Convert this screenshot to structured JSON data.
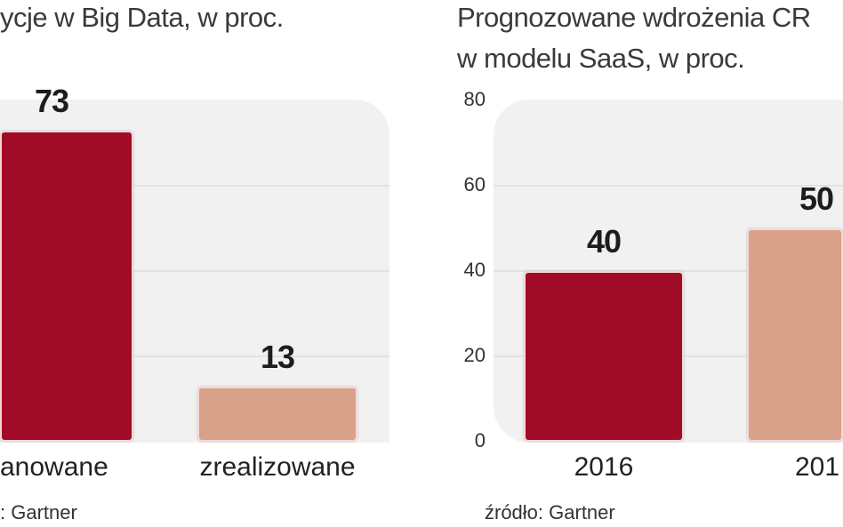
{
  "chart_data": [
    {
      "type": "bar",
      "title": "ycje w Big Data, w proc.",
      "categories": [
        "anowane",
        "zrealizowane"
      ],
      "values": [
        73,
        13
      ],
      "data_labels": [
        "73",
        "13"
      ],
      "colors": [
        "#a00c27",
        "#d9a08a"
      ],
      "ylim": [
        0,
        80
      ],
      "grid": true,
      "source": ": Gartner"
    },
    {
      "type": "bar",
      "title": [
        "Prognozowane wdrożenia CR",
        "w modelu SaaS, w proc."
      ],
      "categories": [
        "2016",
        "201"
      ],
      "values": [
        40,
        50
      ],
      "data_labels": [
        "40",
        "50"
      ],
      "colors": [
        "#a00c27",
        "#d9a08a"
      ],
      "ylim": [
        0,
        80
      ],
      "yticks": [
        "0",
        "20",
        "40",
        "60",
        "80"
      ],
      "grid": true,
      "source": "źródło: Gartner"
    }
  ]
}
